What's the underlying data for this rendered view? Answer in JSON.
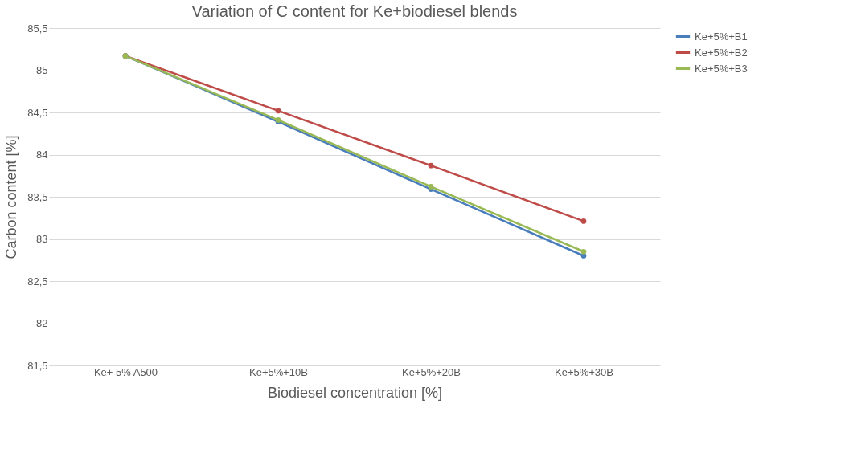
{
  "chart_data": {
    "type": "line",
    "title": "Variation of C content for Ke+biodiesel blends",
    "xlabel": "Biodiesel concentration [%]",
    "ylabel": "Carbon content [%]",
    "categories": [
      "Ke+ 5% A500",
      "Ke+5%+10B",
      "Ke+5%+20B",
      "Ke+5%+30B"
    ],
    "series": [
      {
        "name": "Ke+5%+B1",
        "color": "#4a7ebb",
        "values": [
          85.17,
          84.39,
          83.59,
          82.8
        ]
      },
      {
        "name": "Ke+5%+B2",
        "color": "#be4b48",
        "values": [
          85.17,
          84.52,
          83.87,
          83.21
        ]
      },
      {
        "name": "Ke+5%+B3",
        "color": "#98b954",
        "values": [
          85.17,
          84.41,
          83.62,
          82.85
        ]
      }
    ],
    "ylim": [
      81.5,
      85.5
    ],
    "yticks": [
      {
        "value": 81.5,
        "label": "81,5"
      },
      82,
      {
        "value": 82.5,
        "label": "82,5"
      },
      83,
      {
        "value": 83.5,
        "label": "83,5"
      },
      84,
      {
        "value": 84.5,
        "label": "84,5"
      },
      85,
      {
        "value": 85.5,
        "label": "85,5"
      }
    ],
    "grid": "y",
    "legend": "right",
    "marker": "circle",
    "line_style": "solid"
  }
}
